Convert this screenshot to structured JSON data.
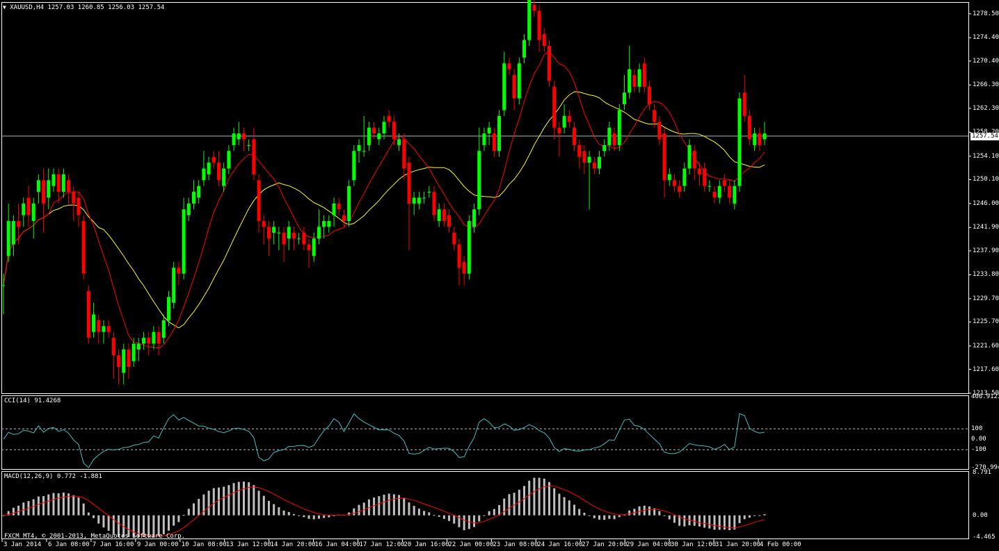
{
  "colors": {
    "background": "#000000",
    "bull": "#00ff00",
    "bear": "#ff0000",
    "ma_fast": "#ff0000",
    "ma_slow": "#ffff00",
    "cci_line": "#40c0c0",
    "macd_hist": "#c0c0c0",
    "signal": "#ff0000",
    "bid_line": "#a0c0c0",
    "border": "#ffffff"
  },
  "header": {
    "arrow": "▼",
    "symbol": "XAUUSD,H4",
    "ohlc": "1257.03 1260.85 1256.03 1257.54"
  },
  "price_axis": {
    "ticks": [
      "1278.50",
      "1274.40",
      "1270.40",
      "1266.30",
      "1262.30",
      "1258.20",
      "1254.10",
      "1250.10",
      "1246.00",
      "1241.90",
      "1237.90",
      "1233.80",
      "1229.70",
      "1225.70",
      "1221.60",
      "1217.60",
      "1213.50"
    ],
    "current": "1257.54"
  },
  "cci": {
    "label": "CCI(14) 91.4268",
    "ticks": [
      "406.9123",
      "100",
      "0.00",
      "-100",
      "-270.9944"
    ]
  },
  "macd": {
    "label": "MACD(12,26,9) 0.772 -1.881",
    "ticks": [
      "8.791",
      "0.00",
      "-4.465"
    ]
  },
  "time_axis": [
    "3 Jan 2014",
    "6 Jan 08:00",
    "7 Jan 16:00",
    "9 Jan 00:00",
    "10 Jan 08:00",
    "13 Jan 12:00",
    "14 Jan 20:00",
    "16 Jan 04:00",
    "17 Jan 12:00",
    "20 Jan 16:00",
    "22 Jan 00:00",
    "23 Jan 08:00",
    "24 Jan 16:00",
    "27 Jan 20:00",
    "29 Jan 04:00",
    "30 Jan 12:00",
    "31 Jan 20:00",
    "4 Feb 00:00"
  ],
  "copyright": "FXCM MT4, © 2001-2013, MetaQuotes Software Corp.",
  "chart_data": {
    "type": "candlestick",
    "symbol": "XAUUSD",
    "timeframe": "H4",
    "ylim": [
      1213.5,
      1280.5
    ],
    "close_start": 1232.0,
    "candles": [
      [
        0,
        2,
        -5,
        5
      ],
      [
        6,
        3,
        -1,
        -4
      ],
      [
        4,
        1,
        -2,
        0
      ],
      [
        -1,
        3,
        -3,
        2
      ],
      [
        2,
        1,
        -2,
        1
      ],
      [
        -3,
        2,
        -2,
        -1
      ],
      [
        3,
        1,
        -3,
        2
      ],
      [
        2,
        1,
        -2,
        0
      ],
      [
        -4,
        2,
        -5,
        1
      ],
      [
        3,
        2,
        -2,
        -1
      ],
      [
        2,
        1,
        -1,
        0
      ],
      [
        -3,
        1,
        -2,
        0
      ],
      [
        3,
        1,
        -1,
        -1
      ],
      [
        -2,
        1,
        -2,
        0
      ],
      [
        -2,
        1,
        -3,
        1
      ],
      [
        -3,
        1,
        -2,
        -1
      ],
      [
        -9,
        1,
        -1,
        -3
      ],
      [
        -8,
        1,
        -1,
        1
      ],
      [
        3,
        2,
        -1,
        -1
      ],
      [
        -2,
        1,
        -2,
        0
      ],
      [
        1,
        1,
        -2,
        0
      ],
      [
        -1,
        1,
        -1,
        -1
      ],
      [
        -3,
        1,
        -4,
        0
      ],
      [
        -2,
        1,
        -3,
        -1
      ],
      [
        4,
        1,
        -2,
        0
      ],
      [
        -3,
        1,
        -2,
        1
      ],
      [
        3,
        1,
        -1,
        -1
      ],
      [
        1,
        1,
        -2,
        0
      ],
      [
        1,
        1,
        -1,
        0
      ],
      [
        -1,
        1,
        -2,
        0
      ],
      [
        2,
        1,
        -1,
        0
      ],
      [
        -2,
        1,
        -2,
        1
      ],
      [
        3,
        1,
        -1,
        0
      ],
      [
        4,
        1,
        -1,
        -1
      ],
      [
        6,
        1,
        -1,
        0
      ],
      [
        -1,
        1,
        -2,
        0
      ],
      [
        11,
        2,
        -1,
        -1
      ],
      [
        2,
        1,
        -1,
        0
      ],
      [
        2,
        2,
        -1,
        -1
      ],
      [
        2,
        1,
        -1,
        1
      ],
      [
        2,
        3,
        -1,
        -1
      ],
      [
        2,
        1,
        -1,
        1
      ],
      [
        -1,
        1,
        -1,
        0
      ],
      [
        -3,
        2,
        -1,
        -1
      ],
      [
        3,
        1,
        -1,
        0
      ],
      [
        3,
        1,
        -1,
        1
      ],
      [
        2,
        1,
        -1,
        -1
      ],
      [
        1,
        2,
        -1,
        0
      ],
      [
        -1,
        1,
        -2,
        -1
      ],
      [
        0,
        1,
        -1,
        1
      ],
      [
        -6,
        2,
        -1,
        -1
      ],
      [
        -7,
        1,
        -2,
        0
      ],
      [
        -1,
        1,
        -3,
        0
      ],
      [
        -2,
        1,
        -3,
        1
      ],
      [
        1,
        1,
        -2,
        -1
      ],
      [
        0,
        1,
        -3,
        0
      ],
      [
        -2,
        1,
        -3,
        1
      ],
      [
        2,
        1,
        -2,
        -1
      ],
      [
        -1,
        1,
        -2,
        0
      ],
      [
        0,
        1,
        -1,
        1
      ],
      [
        -2,
        1,
        -1,
        0
      ],
      [
        -1,
        1,
        -3,
        -1
      ],
      [
        3,
        1,
        -1,
        0
      ],
      [
        2,
        3,
        -1,
        0
      ],
      [
        1,
        1,
        -2,
        -1
      ],
      [
        1,
        1,
        -1,
        1
      ],
      [
        2,
        1,
        -2,
        0
      ],
      [
        -1,
        1,
        -1,
        -1
      ],
      [
        -1,
        1,
        -1,
        0
      ],
      [
        6,
        1,
        -1,
        1
      ],
      [
        5,
        1,
        -1,
        0
      ],
      [
        1,
        1,
        -2,
        -1
      ],
      [
        0,
        6,
        -1,
        1
      ],
      [
        3,
        1,
        -1,
        0
      ],
      [
        -1,
        1,
        -1,
        -1
      ],
      [
        1,
        1,
        -1,
        0
      ],
      [
        2,
        1,
        -1,
        1
      ],
      [
        -1,
        1,
        -1,
        0
      ],
      [
        -3,
        1,
        -1,
        -1
      ],
      [
        1,
        1,
        -1,
        0
      ],
      [
        -5,
        1,
        -2,
        1
      ],
      [
        -7,
        1,
        -8,
        0
      ],
      [
        1,
        1,
        -2,
        -1
      ],
      [
        1,
        1,
        -1,
        0
      ],
      [
        0,
        1,
        -1,
        1
      ],
      [
        0,
        1,
        -1,
        0
      ],
      [
        -4,
        1,
        -1,
        -1
      ],
      [
        2,
        1,
        -1,
        0
      ],
      [
        -2,
        1,
        -1,
        1
      ],
      [
        -2,
        1,
        -1,
        -1
      ],
      [
        -2,
        1,
        -1,
        0
      ],
      [
        -4,
        1,
        -3,
        1
      ],
      [
        -2,
        1,
        -2,
        0
      ],
      [
        9,
        1,
        -1,
        -1
      ],
      [
        3,
        1,
        -1,
        0
      ],
      [
        10,
        4,
        -1,
        1
      ],
      [
        2,
        1,
        -1,
        0
      ],
      [
        1,
        1,
        -2,
        -1
      ],
      [
        -3,
        1,
        -1,
        0
      ],
      [
        6,
        1,
        -1,
        1
      ],
      [
        8,
        2,
        -1,
        0
      ],
      [
        -1,
        1,
        -1,
        -1
      ],
      [
        -4,
        1,
        -2,
        0
      ],
      [
        6,
        1,
        -1,
        1
      ],
      [
        3,
        1,
        -1,
        0
      ],
      [
        7,
        4,
        -1,
        -1
      ],
      [
        -1,
        1,
        -1,
        0
      ],
      [
        -5,
        1,
        -2,
        1
      ],
      [
        -2,
        1,
        -1,
        0
      ],
      [
        -6,
        1,
        -1,
        -1
      ],
      [
        -7,
        1,
        -2,
        0
      ],
      [
        -1,
        1,
        -4,
        1
      ],
      [
        2,
        2,
        -1,
        0
      ],
      [
        -1,
        1,
        -1,
        -1
      ],
      [
        -3,
        1,
        -1,
        0
      ],
      [
        -2,
        1,
        -2,
        1
      ],
      [
        -2,
        1,
        -2,
        0
      ],
      [
        1,
        1,
        -8,
        -1
      ],
      [
        -1,
        1,
        -1,
        0
      ],
      [
        2,
        1,
        -1,
        1
      ],
      [
        1,
        1,
        -1,
        0
      ],
      [
        3,
        1,
        -1,
        -1
      ],
      [
        -2,
        1,
        -1,
        0
      ],
      [
        6,
        1,
        -1,
        1
      ],
      [
        2,
        3,
        -1,
        0
      ],
      [
        4,
        4,
        -1,
        -1
      ],
      [
        -2,
        1,
        -1,
        0
      ],
      [
        3,
        1,
        -1,
        1
      ],
      [
        -4,
        1,
        -1,
        0
      ],
      [
        -3,
        1,
        -1,
        -1
      ],
      [
        -2,
        1,
        -1,
        0
      ],
      [
        -3,
        1,
        -1,
        1
      ],
      [
        -8,
        1,
        -3,
        0
      ],
      [
        1,
        1,
        -1,
        -1
      ],
      [
        -1,
        1,
        -1,
        0
      ],
      [
        -1,
        1,
        -1,
        1
      ],
      [
        3,
        1,
        -1,
        0
      ],
      [
        4,
        1,
        -1,
        -1
      ],
      [
        -3,
        1,
        -2,
        0
      ],
      [
        -1,
        1,
        -2,
        1
      ],
      [
        -3,
        1,
        -1,
        0
      ],
      [
        0,
        1,
        -1,
        -1
      ],
      [
        -1,
        1,
        -1,
        0
      ],
      [
        2,
        1,
        -1,
        1
      ],
      [
        -1,
        1,
        -1,
        0
      ],
      [
        -2,
        1,
        -1,
        -1
      ],
      [
        3,
        1,
        -1,
        0
      ],
      [
        15,
        1,
        -1,
        1
      ],
      [
        -4,
        3,
        -1,
        0
      ],
      [
        -4,
        1,
        -1,
        -1
      ],
      [
        2,
        1,
        -1,
        0
      ],
      [
        -2,
        1,
        -1,
        1
      ],
      [
        1,
        2,
        -1,
        0
      ]
    ],
    "ma_fast_period": 10,
    "ma_slow_period": 20,
    "cci_period": 14,
    "cci_last": 91.4268,
    "cci_ylim": [
      -270.9944,
      406.9123
    ],
    "cci_levels": [
      100,
      -100
    ],
    "macd_params": [
      12,
      26,
      9
    ],
    "macd_last": 0.772,
    "signal_last": -1.881,
    "macd_ylim": [
      -4.465,
      8.791
    ]
  }
}
